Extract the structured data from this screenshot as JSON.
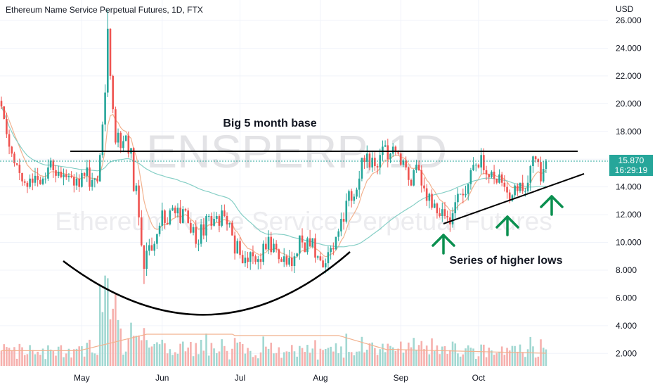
{
  "header": {
    "title": "Ethereum Name Service Perpetual Futures, 1D, FTX"
  },
  "price_axis": {
    "currency": "USD",
    "last_price": "15.870",
    "countdown": "16:29:19"
  },
  "watermark": {
    "symbol": "ENSPERP, 1D",
    "name": "Ethereum Name Service Perpetual Futures"
  },
  "annotations": {
    "base_label": "Big 5 month base",
    "higher_lows_label": "Series of higher lows"
  },
  "colors": {
    "up": "#26a69a",
    "down": "#ef5350",
    "up_volume": "#a2d8d2",
    "down_volume": "#f6b1ae",
    "ma_fast": "#f2b28f",
    "ma_slow": "#86cfc6",
    "arrow": "#0a8f4f",
    "annotation_line": "#000000",
    "last_price_line": "#26a69a"
  },
  "chart_data": {
    "type": "candlestick",
    "y_ticks": [
      "2.000",
      "4.000",
      "6.000",
      "8.000",
      "10.000",
      "12.000",
      "14.000",
      "16.000",
      "18.000",
      "20.000",
      "22.000",
      "24.000",
      "26.000"
    ],
    "ylim": [
      1.0,
      26.5
    ],
    "x_ticks": [
      "May",
      "Jun",
      "Jul",
      "Aug",
      "Sep",
      "Oct"
    ],
    "base_level": 16.5,
    "last_price": 15.87,
    "higher_low_points": [
      11.3,
      12.0,
      14.3
    ],
    "series_closes": [
      19.8,
      18.9,
      17.8,
      16.9,
      16.4,
      15.7,
      15.6,
      15.0,
      14.4,
      14.3,
      14.0,
      14.6,
      14.3,
      14.8,
      14.5,
      14.2,
      14.6,
      14.6,
      15.4,
      15.9,
      15.2,
      14.8,
      15.1,
      14.7,
      14.9,
      14.7,
      14.8,
      14.7,
      14.1,
      14.6,
      14.0,
      15.0,
      14.8,
      15.4,
      14.0,
      14.5,
      14.6,
      14.4,
      16.3,
      18.5,
      20.8,
      25.4,
      22.0,
      19.6,
      17.2,
      17.9,
      16.8,
      17.3,
      17.7,
      16.4,
      16.8,
      13.7,
      14.1,
      11.8,
      9.8,
      8.1,
      9.4,
      9.8,
      9.4,
      9.9,
      10.6,
      11.2,
      12.3,
      11.4,
      11.3,
      12.3,
      12.5,
      12.1,
      12.5,
      11.4,
      12.4,
      12.3,
      11.4,
      10.7,
      11.1,
      9.9,
      9.9,
      11.3,
      10.5,
      11.9,
      11.9,
      11.2,
      11.7,
      11.9,
      11.2,
      12.3,
      11.9,
      11.3,
      11.4,
      10.5,
      9.2,
      10.1,
      9.1,
      8.5,
      8.9,
      8.6,
      9.3,
      9.0,
      8.6,
      8.8,
      8.6,
      9.9,
      9.5,
      10.4,
      9.3,
      9.9,
      9.5,
      8.8,
      8.6,
      9.0,
      8.4,
      8.9,
      8.3,
      9.0,
      9.2,
      10.5,
      10.0,
      9.3,
      10.3,
      9.7,
      10.3,
      8.9,
      9.0,
      8.7,
      8.2,
      8.5,
      9.3,
      9.6,
      9.5,
      10.4,
      10.8,
      11.7,
      11.5,
      13.0,
      13.7,
      13.0,
      13.3,
      13.8,
      14.6,
      16.1,
      15.8,
      16.4,
      15.4,
      16.1,
      15.5,
      15.4,
      16.3,
      16.9,
      17.0,
      16.0,
      16.4,
      16.9,
      16.5,
      16.4,
      15.6,
      15.9,
      15.4,
      14.5,
      14.1,
      15.2,
      15.6,
      15.2,
      14.1,
      13.9,
      13.0,
      13.5,
      12.5,
      12.8,
      12.1,
      11.9,
      12.4,
      11.9,
      11.8,
      11.3,
      12.1,
      12.9,
      13.5,
      13.5,
      13.4,
      13.5,
      14.2,
      15.2,
      15.6,
      15.6,
      15.4,
      16.3,
      15.2,
      14.9,
      14.7,
      15.1,
      14.6,
      14.3,
      14.9,
      14.3,
      14.0,
      13.6,
      13.0,
      13.4,
      14.1,
      13.7,
      14.3,
      13.7,
      13.7,
      14.3,
      15.5,
      16.2,
      16.0,
      15.8,
      14.4,
      15.3,
      15.9
    ],
    "volume_ylim": [
      0,
      8.5
    ]
  }
}
